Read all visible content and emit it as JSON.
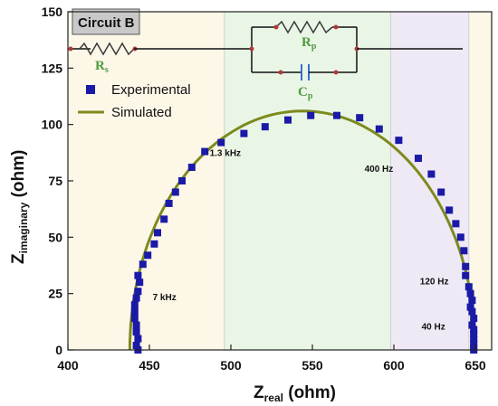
{
  "chart_data": {
    "type": "scatter",
    "xlabel": {
      "main": "Z",
      "sub": "real",
      "unit": " (ohm)"
    },
    "ylabel": {
      "main": "Z",
      "sub": "imaginary",
      "unit": " (ohm)"
    },
    "xlim": [
      400,
      660
    ],
    "ylim": [
      0,
      150
    ],
    "x_ticks": [
      "400",
      "450",
      "500",
      "550",
      "600",
      "650"
    ],
    "y_ticks": [
      "0",
      "25",
      "50",
      "75",
      "100",
      "125",
      "150"
    ],
    "regions": [
      {
        "from": 400,
        "to": 496,
        "color": "#fdf7e8"
      },
      {
        "from": 496,
        "to": 598,
        "color": "#e9f6e6"
      },
      {
        "from": 598,
        "to": 646,
        "color": "#efe9f6"
      },
      {
        "from": 646,
        "to": 660,
        "color": "#fdf7e8"
      }
    ],
    "series": [
      {
        "name": "Experimental",
        "kind": "markers",
        "color": "#1a1aa6",
        "points": [
          [
            443,
            0
          ],
          [
            442,
            2
          ],
          [
            443,
            5
          ],
          [
            442,
            8
          ],
          [
            442,
            11
          ],
          [
            441,
            14
          ],
          [
            441,
            17
          ],
          [
            441,
            20
          ],
          [
            442,
            23
          ],
          [
            443,
            26
          ],
          [
            444,
            30
          ],
          [
            443,
            33
          ],
          [
            446,
            38
          ],
          [
            449,
            42
          ],
          [
            453,
            47
          ],
          [
            455,
            52
          ],
          [
            459,
            58
          ],
          [
            462,
            65
          ],
          [
            466,
            70
          ],
          [
            470,
            75
          ],
          [
            476,
            81
          ],
          [
            484,
            88
          ],
          [
            494,
            92
          ],
          [
            508,
            96
          ],
          [
            521,
            99
          ],
          [
            535,
            102
          ],
          [
            549,
            104
          ],
          [
            565,
            104
          ],
          [
            579,
            103
          ],
          [
            591,
            98
          ],
          [
            603,
            93
          ],
          [
            615,
            85
          ],
          [
            623,
            78
          ],
          [
            629,
            70
          ],
          [
            634,
            62
          ],
          [
            638,
            56
          ],
          [
            641,
            50
          ],
          [
            643,
            44
          ],
          [
            644,
            37
          ],
          [
            644,
            33
          ],
          [
            646,
            28
          ],
          [
            647,
            25
          ],
          [
            648,
            22
          ],
          [
            647,
            19
          ],
          [
            648,
            17
          ],
          [
            649,
            14
          ],
          [
            648,
            11
          ],
          [
            649,
            9
          ],
          [
            649,
            7
          ],
          [
            649,
            5
          ],
          [
            649,
            3
          ],
          [
            649,
            1
          ],
          [
            649,
            0
          ]
        ]
      },
      {
        "name": "Simulated",
        "kind": "line",
        "color": "#7d8a1e",
        "center": [
          544,
          0
        ],
        "radius": 106
      }
    ],
    "annotations": [
      {
        "text": "1.3 kHz",
        "x": 487,
        "y": 86
      },
      {
        "text": "400 Hz",
        "x": 582,
        "y": 79
      },
      {
        "text": "7 kHz",
        "x": 452,
        "y": 22
      },
      {
        "text": "120 Hz",
        "x": 616,
        "y": 29
      },
      {
        "text": "40 Hz",
        "x": 617,
        "y": 9
      }
    ],
    "legend": {
      "placement": "top-left"
    }
  },
  "inset": {
    "badge": "Circuit B",
    "rs_label": "R",
    "rs_sub": "s",
    "rp_label": "R",
    "rp_sub": "p",
    "cp_label": "C",
    "cp_sub": "p"
  }
}
